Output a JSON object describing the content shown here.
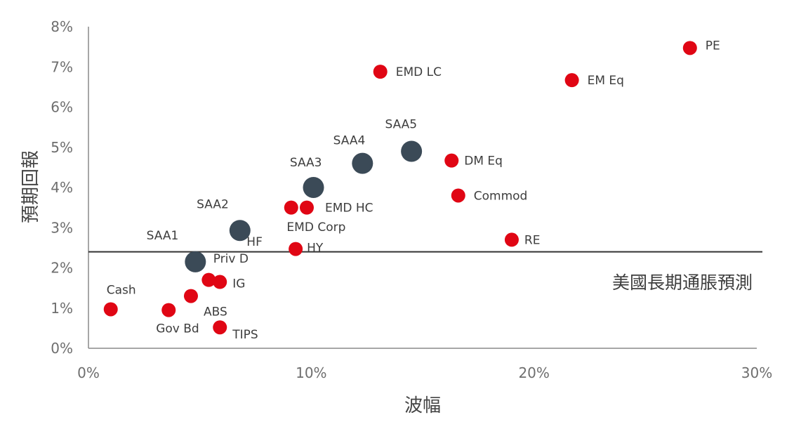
{
  "chart_data": {
    "type": "scatter",
    "title": "",
    "xlabel": "波幅",
    "ylabel": "預期回報",
    "xlim": [
      0,
      30
    ],
    "ylim": [
      0,
      8
    ],
    "x_ticks": [
      "0%",
      "10%",
      "20%",
      "30%"
    ],
    "y_ticks": [
      "0%",
      "1%",
      "2%",
      "3%",
      "4%",
      "5%",
      "6%",
      "7%",
      "8%"
    ],
    "grid": false,
    "reference_line": {
      "y": 2.4,
      "label": "美國長期通脹預測"
    },
    "series": [
      {
        "color": "#e00614",
        "points": [
          {
            "label": "Cash",
            "x": 1.0,
            "y": 0.97
          },
          {
            "label": "Gov Bd",
            "x": 3.6,
            "y": 0.95
          },
          {
            "label": "ABS",
            "x": 4.6,
            "y": 1.3
          },
          {
            "label": "TIPS",
            "x": 5.9,
            "y": 0.52
          },
          {
            "label": "",
            "x": 5.4,
            "y": 1.7
          },
          {
            "label": "IG",
            "x": 5.9,
            "y": 1.65
          },
          {
            "label": "HY",
            "x": 9.3,
            "y": 2.47
          },
          {
            "label": "",
            "x": 9.1,
            "y": 3.5
          },
          {
            "label": "EMD HC",
            "x": 9.8,
            "y": 3.5
          },
          {
            "label": "EMD LC",
            "x": 13.1,
            "y": 6.88
          },
          {
            "label": "DM Eq",
            "x": 16.3,
            "y": 4.67
          },
          {
            "label": "Commod",
            "x": 16.6,
            "y": 3.8
          },
          {
            "label": "RE",
            "x": 19.0,
            "y": 2.7
          },
          {
            "label": "EM Eq",
            "x": 21.7,
            "y": 6.67
          },
          {
            "label": "PE",
            "x": 27.0,
            "y": 7.47
          }
        ]
      },
      {
        "color": "#3b4a57",
        "points": [
          {
            "label": "SAA1",
            "x": 4.8,
            "y": 2.15
          },
          {
            "label": "SAA2",
            "x": 6.8,
            "y": 2.93
          },
          {
            "label": "SAA3",
            "x": 10.1,
            "y": 4.0
          },
          {
            "label": "SAA4",
            "x": 12.3,
            "y": 4.6
          },
          {
            "label": "SAA5",
            "x": 14.5,
            "y": 4.9
          }
        ]
      }
    ],
    "extra_labels": [
      "Priv D",
      "HF",
      "EMD Corp"
    ]
  }
}
